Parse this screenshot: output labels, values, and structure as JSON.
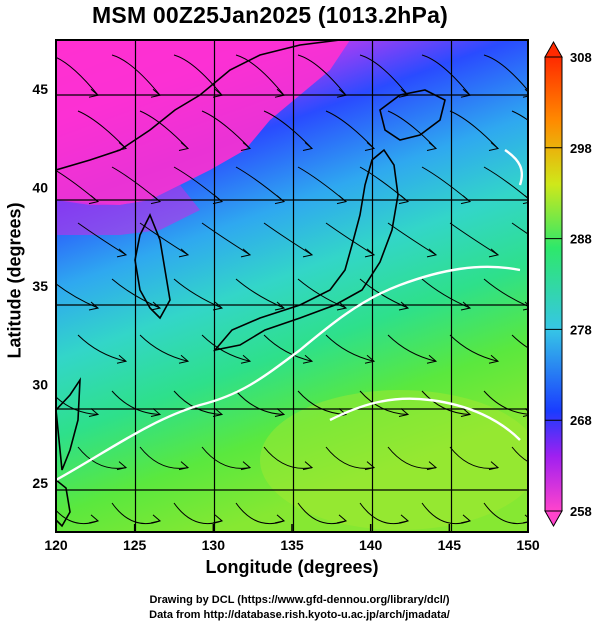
{
  "title": "MSM 00Z25Jan2025 (1013.2hPa)",
  "axes": {
    "xlabel": "Longitude (degrees)",
    "ylabel": "Latitude  (degrees)",
    "x_ticks": [
      "120",
      "125",
      "130",
      "135",
      "140",
      "145",
      "150"
    ],
    "y_ticks": [
      "25",
      "30",
      "35",
      "40",
      "45"
    ],
    "x_range": [
      120,
      150
    ],
    "y_range": [
      22.5,
      47.5
    ]
  },
  "colorbar": {
    "ticks": [
      "258",
      "268",
      "278",
      "288",
      "298",
      "308"
    ],
    "range": [
      258,
      308
    ],
    "colors": [
      "#ff44cc",
      "#a020f0",
      "#1a3cff",
      "#36c6e6",
      "#2ee86a",
      "#cfe81a",
      "#ff8a00",
      "#ff2a00"
    ]
  },
  "credits": {
    "line1": "Drawing by DCL (https://www.gfd-dennou.org/library/dcl/)",
    "line2": "Data from http://database.rish.kyoto-u.ac.jp/arch/jmadata/"
  }
}
